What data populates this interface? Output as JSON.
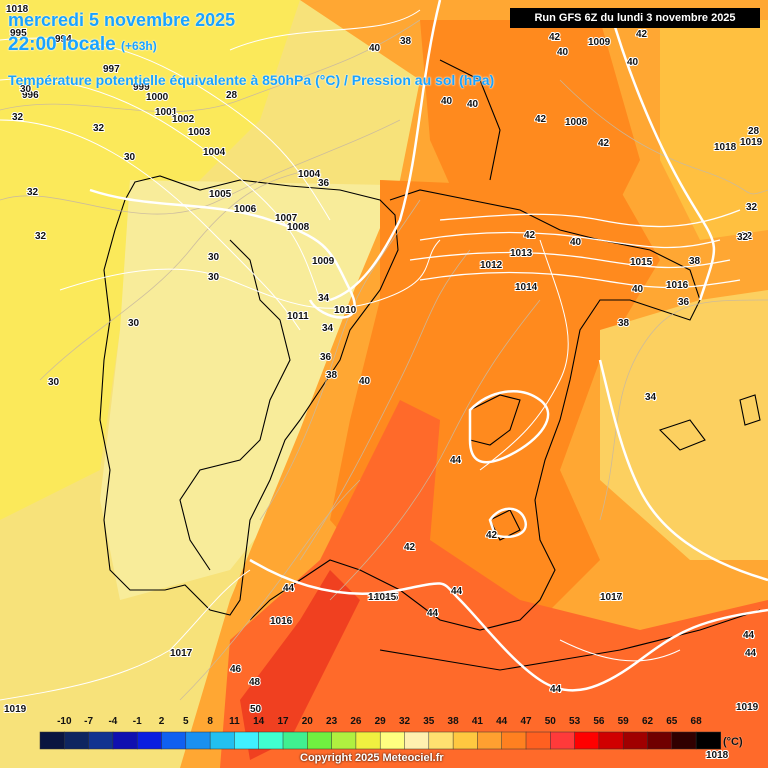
{
  "header": {
    "date": "mercredi 5 novembre 2025",
    "local_time": "22:00 locale",
    "lead": "(+63h)",
    "parameter": "Température potentielle équivalente à 850hPa (°C) / Pression au sol (hPa)",
    "run": "Run GFS 6Z du lundi 3 novembre 2025"
  },
  "legend": {
    "ticks": [
      "-10",
      "-7",
      "-4",
      "-1",
      "2",
      "5",
      "8",
      "11",
      "14",
      "17",
      "20",
      "23",
      "26",
      "29",
      "32",
      "35",
      "38",
      "41",
      "44",
      "47",
      "50",
      "53",
      "56",
      "59",
      "62",
      "65",
      "68"
    ],
    "colors": [
      "#0a1540",
      "#0e2560",
      "#123390",
      "#1010b0",
      "#0a1ee0",
      "#1060f0",
      "#1a90f0",
      "#22c0f0",
      "#40f0ff",
      "#40ffd0",
      "#40f090",
      "#70f040",
      "#b0f040",
      "#f0f040",
      "#ffff80",
      "#fff0b0",
      "#ffe070",
      "#ffc840",
      "#ffa030",
      "#ff8020",
      "#ff6020",
      "#ff3a3a",
      "#ff0000",
      "#d00000",
      "#a00000",
      "#700000",
      "#300000",
      "#000000"
    ],
    "unit": "(°C)"
  },
  "copyright": "Copyright 2025 Meteociel.fr",
  "map_labels": [
    {
      "t": "995"
    },
    {
      "t": "994"
    },
    {
      "t": "996"
    },
    {
      "t": "997"
    },
    {
      "t": "999"
    },
    {
      "t": "1000"
    },
    {
      "t": "1001"
    },
    {
      "t": "1002"
    },
    {
      "t": "1003"
    },
    {
      "t": "1004"
    },
    {
      "t": "1005"
    },
    {
      "t": "1006"
    },
    {
      "t": "1007"
    },
    {
      "t": "1008"
    },
    {
      "t": "1004"
    },
    {
      "t": "1009"
    },
    {
      "t": "1010"
    },
    {
      "t": "1011"
    },
    {
      "t": "1012"
    },
    {
      "t": "1013"
    },
    {
      "t": "1014"
    },
    {
      "t": "1015"
    },
    {
      "t": "1016"
    },
    {
      "t": "1017"
    },
    {
      "t": "1018"
    },
    {
      "t": "1019"
    },
    {
      "t": "1008"
    },
    {
      "t": "1009"
    },
    {
      "t": "1015"
    },
    {
      "t": "1016"
    },
    {
      "t": "1018"
    },
    {
      "t": "1019"
    },
    {
      "t": "1015"
    },
    {
      "t": "1015"
    },
    {
      "t": "1015"
    },
    {
      "t": "1016"
    },
    {
      "t": "1017"
    },
    {
      "t": "1018"
    },
    {
      "t": "1019"
    },
    {
      "t": "1018"
    },
    {
      "t": "28"
    },
    {
      "t": "30"
    },
    {
      "t": "32"
    },
    {
      "t": "32"
    },
    {
      "t": "32"
    },
    {
      "t": "32"
    },
    {
      "t": "30"
    },
    {
      "t": "30"
    },
    {
      "t": "30"
    },
    {
      "t": "30"
    },
    {
      "t": "36"
    },
    {
      "t": "34"
    },
    {
      "t": "36"
    },
    {
      "t": "38"
    },
    {
      "t": "40"
    },
    {
      "t": "40"
    },
    {
      "t": "38"
    },
    {
      "t": "40"
    },
    {
      "t": "40"
    },
    {
      "t": "42"
    },
    {
      "t": "42"
    },
    {
      "t": "42"
    },
    {
      "t": "42"
    },
    {
      "t": "40"
    },
    {
      "t": "42"
    },
    {
      "t": "40"
    },
    {
      "t": "40"
    },
    {
      "t": "40"
    },
    {
      "t": "38"
    },
    {
      "t": "36"
    },
    {
      "t": "38"
    },
    {
      "t": "34"
    },
    {
      "t": "44"
    },
    {
      "t": "44"
    },
    {
      "t": "44"
    },
    {
      "t": "44"
    },
    {
      "t": "44"
    },
    {
      "t": "46"
    },
    {
      "t": "48"
    },
    {
      "t": "50"
    },
    {
      "t": "42"
    },
    {
      "t": "42"
    },
    {
      "t": "44"
    },
    {
      "t": "44"
    },
    {
      "t": "30"
    },
    {
      "t": "32"
    },
    {
      "t": "32"
    },
    {
      "t": "28"
    },
    {
      "t": "32"
    },
    {
      "t": "34"
    }
  ]
}
